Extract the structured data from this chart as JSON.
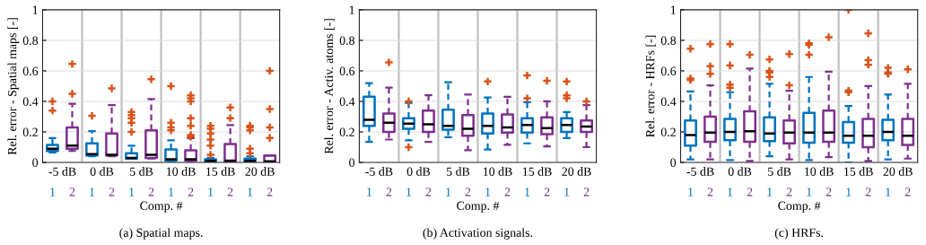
{
  "chart_data": [
    {
      "type": "box",
      "title": "(a) Spatial maps.",
      "xlabel": "Comp. #",
      "ylabel": "Rel. error - Spatial maps [-]",
      "categories": [
        "-5 dB",
        "0 dB",
        "5 dB",
        "10 dB",
        "15 dB",
        "20 dB"
      ],
      "ylim": [
        0,
        1
      ],
      "yticks": [
        0,
        0.2,
        0.4,
        0.6,
        0.8,
        1
      ],
      "grid": true,
      "series": [
        {
          "name": "1",
          "color": "#0072bd",
          "boxes": [
            {
              "low": 0.065,
              "q1": 0.075,
              "median": 0.09,
              "q3": 0.115,
              "high": 0.16,
              "outliers": [
                0.34,
                0.4
              ]
            },
            {
              "low": 0.04,
              "q1": 0.045,
              "median": 0.055,
              "q3": 0.125,
              "high": 0.205,
              "outliers": [
                0.305
              ]
            },
            {
              "low": 0.025,
              "q1": 0.025,
              "median": 0.03,
              "q3": 0.06,
              "high": 0.11,
              "outliers": [
                0.2,
                0.26,
                0.29,
                0.31,
                0.33
              ]
            },
            {
              "low": 0.01,
              "q1": 0.012,
              "median": 0.02,
              "q3": 0.085,
              "high": 0.145,
              "outliers": [
                0.21,
                0.23,
                0.26,
                0.5
              ]
            },
            {
              "low": 0.005,
              "q1": 0.005,
              "median": 0.01,
              "q3": 0.02,
              "high": 0.03,
              "outliers": [
                0.05,
                0.11,
                0.15,
                0.19,
                0.22,
                0.24
              ]
            },
            {
              "low": 0.004,
              "q1": 0.005,
              "median": 0.01,
              "q3": 0.025,
              "high": 0.04,
              "outliers": [
                0.06,
                0.09,
                0.21,
                0.23,
                0.24
              ]
            }
          ]
        },
        {
          "name": "2",
          "color": "#7e2f8e",
          "boxes": [
            {
              "low": 0.075,
              "q1": 0.09,
              "median": 0.11,
              "q3": 0.23,
              "high": 0.385,
              "outliers": [
                0.45,
                0.645
              ]
            },
            {
              "low": 0.04,
              "q1": 0.045,
              "median": 0.05,
              "q3": 0.19,
              "high": 0.375,
              "outliers": [
                0.485
              ]
            },
            {
              "low": 0.025,
              "q1": 0.03,
              "median": 0.05,
              "q3": 0.21,
              "high": 0.415,
              "outliers": [
                0.545
              ]
            },
            {
              "low": 0.01,
              "q1": 0.012,
              "median": 0.02,
              "q3": 0.08,
              "high": 0.16,
              "outliers": [
                0.17,
                0.18,
                0.24,
                0.29,
                0.4,
                0.42,
                0.44
              ]
            },
            {
              "low": 0.005,
              "q1": 0.006,
              "median": 0.012,
              "q3": 0.12,
              "high": 0.245,
              "outliers": [
                0.29,
                0.36
              ]
            },
            {
              "low": 0.004,
              "q1": 0.005,
              "median": 0.008,
              "q3": 0.045,
              "high": 0.045,
              "outliers": [
                0.16,
                0.23,
                0.35,
                0.6
              ]
            }
          ]
        }
      ]
    },
    {
      "type": "box",
      "title": "(b) Activation signals.",
      "xlabel": "Comp. #",
      "ylabel": "Rel. error - Activ. atoms [-]",
      "categories": [
        "-5 dB",
        "0 dB",
        "5 dB",
        "10 dB",
        "15 dB",
        "20 dB"
      ],
      "ylim": [
        0,
        1
      ],
      "yticks": [
        0,
        0.2,
        0.4,
        0.6,
        0.8,
        1
      ],
      "grid": true,
      "series": [
        {
          "name": "1",
          "color": "#0072bd",
          "boxes": [
            {
              "low": 0.135,
              "q1": 0.24,
              "median": 0.28,
              "q3": 0.43,
              "high": 0.52
            },
            {
              "low": 0.145,
              "q1": 0.22,
              "median": 0.255,
              "q3": 0.29,
              "high": 0.39,
              "outliers": [
                0.1,
                0.4
              ]
            },
            {
              "low": 0.165,
              "q1": 0.215,
              "median": 0.24,
              "q3": 0.345,
              "high": 0.525
            },
            {
              "low": 0.085,
              "q1": 0.19,
              "median": 0.24,
              "q3": 0.32,
              "high": 0.425,
              "outliers": [
                0.53
              ]
            },
            {
              "low": 0.125,
              "q1": 0.195,
              "median": 0.245,
              "q3": 0.29,
              "high": 0.395,
              "outliers": [
                0.42,
                0.57
              ]
            },
            {
              "low": 0.16,
              "q1": 0.2,
              "median": 0.245,
              "q3": 0.29,
              "high": 0.33,
              "outliers": [
                0.42,
                0.44,
                0.53
              ]
            }
          ]
        },
        {
          "name": "2",
          "color": "#7e2f8e",
          "boxes": [
            {
              "low": 0.15,
              "q1": 0.2,
              "median": 0.26,
              "q3": 0.32,
              "high": 0.49,
              "outliers": [
                0.655
              ]
            },
            {
              "low": 0.135,
              "q1": 0.2,
              "median": 0.25,
              "q3": 0.34,
              "high": 0.44
            },
            {
              "low": 0.08,
              "q1": 0.175,
              "median": 0.22,
              "q3": 0.31,
              "high": 0.445
            },
            {
              "low": 0.115,
              "q1": 0.195,
              "median": 0.23,
              "q3": 0.315,
              "high": 0.43
            },
            {
              "low": 0.105,
              "q1": 0.185,
              "median": 0.225,
              "q3": 0.295,
              "high": 0.4,
              "outliers": [
                0.535
              ]
            },
            {
              "low": 0.1,
              "q1": 0.2,
              "median": 0.235,
              "q3": 0.275,
              "high": 0.375,
              "outliers": [
                0.4
              ]
            }
          ]
        }
      ]
    },
    {
      "type": "box",
      "title": "(c) HRFs.",
      "xlabel": "Comp. #",
      "ylabel": "Rel. error - HRFs [-]",
      "categories": [
        "-5 dB",
        "0 dB",
        "5 dB",
        "10 dB",
        "15 dB",
        "20 dB"
      ],
      "ylim": [
        0,
        1
      ],
      "yticks": [
        0,
        0.2,
        0.4,
        0.6,
        0.8,
        1
      ],
      "grid": true,
      "series": [
        {
          "name": "1",
          "color": "#0072bd",
          "boxes": [
            {
              "low": 0.02,
              "q1": 0.11,
              "median": 0.18,
              "q3": 0.275,
              "high": 0.465,
              "outliers": [
                0.54,
                0.55,
                0.745
              ]
            },
            {
              "low": 0.015,
              "q1": 0.145,
              "median": 0.2,
              "q3": 0.285,
              "high": 0.46,
              "outliers": [
                0.49,
                0.51,
                0.635,
                0.775
              ]
            },
            {
              "low": 0.04,
              "q1": 0.14,
              "median": 0.19,
              "q3": 0.295,
              "high": 0.515,
              "outliers": [
                0.56,
                0.59,
                0.6,
                0.675
              ]
            },
            {
              "low": 0.015,
              "q1": 0.13,
              "median": 0.195,
              "q3": 0.325,
              "high": 0.56,
              "outliers": [
                0.705,
                0.77,
                0.78
              ]
            },
            {
              "low": 0.0,
              "q1": 0.13,
              "median": 0.175,
              "q3": 0.265,
              "high": 0.37,
              "outliers": [
                0.46,
                0.47,
                1.0
              ]
            },
            {
              "low": 0.02,
              "q1": 0.145,
              "median": 0.2,
              "q3": 0.28,
              "high": 0.445,
              "outliers": [
                0.58,
                0.59,
                0.62
              ]
            }
          ]
        },
        {
          "name": "2",
          "color": "#7e2f8e",
          "boxes": [
            {
              "low": 0.02,
              "q1": 0.135,
              "median": 0.195,
              "q3": 0.3,
              "high": 0.505,
              "outliers": [
                0.58,
                0.63,
                0.775
              ]
            },
            {
              "low": 0.01,
              "q1": 0.135,
              "median": 0.205,
              "q3": 0.335,
              "high": 0.615,
              "outliers": [
                0.705
              ]
            },
            {
              "low": 0.02,
              "q1": 0.125,
              "median": 0.195,
              "q3": 0.275,
              "high": 0.47,
              "outliers": [
                0.505,
                0.71
              ]
            },
            {
              "low": 0.035,
              "q1": 0.135,
              "median": 0.195,
              "q3": 0.34,
              "high": 0.595,
              "outliers": [
                0.82
              ]
            },
            {
              "low": 0.01,
              "q1": 0.1,
              "median": 0.175,
              "q3": 0.285,
              "high": 0.5,
              "outliers": [
                0.64,
                0.67,
                0.845
              ]
            },
            {
              "low": 0.025,
              "q1": 0.115,
              "median": 0.175,
              "q3": 0.285,
              "high": 0.515,
              "outliers": [
                0.61
              ]
            }
          ]
        }
      ]
    }
  ]
}
